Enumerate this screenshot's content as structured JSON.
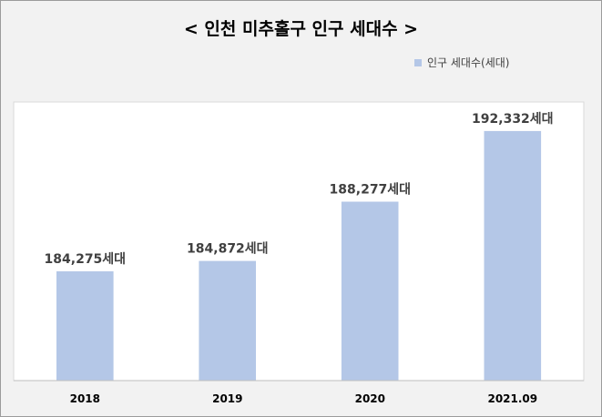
{
  "title": "< 인천 미추홀구 인구 세대수 >",
  "legend": {
    "label": "인구 세대수(세대)"
  },
  "colors": {
    "bar": "#b4c7e7",
    "plot_background": "#ffffff",
    "frame_background": "#f2f2f2"
  },
  "chart_data": {
    "type": "bar",
    "title": "< 인천 미추홀구 인구 세대수 >",
    "categories": [
      "2018",
      "2019",
      "2020",
      "2021.09"
    ],
    "series": [
      {
        "name": "인구 세대수(세대)",
        "values": [
          184275,
          184872,
          188277,
          192332
        ]
      }
    ],
    "data_labels": [
      "184,275세대",
      "184,872세대",
      "188,277세대",
      "192,332세대"
    ],
    "ylim": [
      178000,
      194000
    ],
    "grid": false,
    "legend_position": "top-right"
  }
}
